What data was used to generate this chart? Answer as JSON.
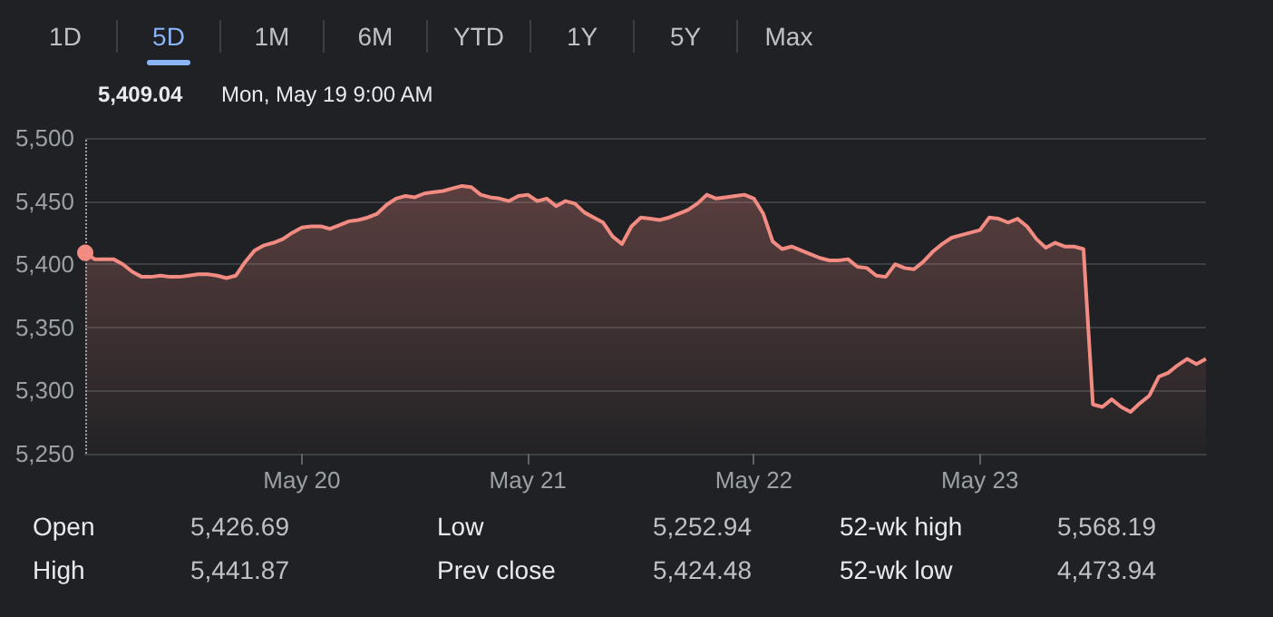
{
  "chart_data": [
    {
      "type": "other",
      "annotations": [
        "1D",
        "5D",
        "1M",
        "6M",
        "YTD",
        "1Y",
        "5Y",
        "Max"
      ]
    },
    {
      "type": "area",
      "color": "#f28b82",
      "line_style": "solid",
      "grid": "y",
      "categories": [
        null,
        null,
        null,
        null,
        null,
        null,
        null,
        null,
        null,
        null,
        null,
        null,
        null,
        null,
        null,
        null,
        null,
        null,
        null,
        null,
        null,
        null,
        null,
        "May 20",
        null,
        null,
        null,
        null,
        null,
        null,
        null,
        null,
        null,
        null,
        null,
        null,
        null,
        null,
        null,
        null,
        null,
        null,
        null,
        null,
        null,
        null,
        null,
        "May 21",
        null,
        null,
        null,
        null,
        null,
        null,
        null,
        null,
        null,
        null,
        null,
        null,
        null,
        null,
        null,
        null,
        null,
        null,
        null,
        null,
        null,
        null,
        null,
        "May 22",
        null,
        null,
        null,
        null,
        null,
        null,
        null,
        null,
        null,
        null,
        null,
        null,
        null,
        null,
        null,
        null,
        null,
        null,
        null,
        null,
        null,
        null,
        null,
        "May 23",
        null,
        null,
        null,
        null,
        null,
        null,
        null,
        null,
        null,
        null,
        null,
        null,
        null,
        null,
        null,
        null,
        null,
        null,
        null,
        null,
        null,
        null,
        null,
        null
      ],
      "values": [
        5409.04,
        5404,
        5404,
        5404,
        5400,
        5394,
        5390,
        5390,
        5391,
        5390,
        5390,
        5391,
        5392,
        5392,
        5391,
        5389,
        5391,
        5402,
        5411,
        5415,
        5417,
        5420,
        5425,
        5429,
        5430,
        5430,
        5428,
        5431,
        5434,
        5435,
        5437,
        5440,
        5447,
        5452,
        5454,
        5453,
        5456,
        5457,
        5458,
        5460,
        5462,
        5461,
        5455,
        5453,
        5452,
        5450,
        5454,
        5455,
        5450,
        5452,
        5446,
        5450,
        5448,
        5441,
        5437,
        5433,
        5422,
        5416,
        5430,
        5437,
        5436,
        5435,
        5437,
        5440,
        5443,
        5448,
        5455,
        5452,
        5453,
        5454,
        5455,
        5452,
        5440,
        5418,
        5412,
        5414,
        5411,
        5408,
        5405,
        5403,
        5403,
        5404,
        5398,
        5397,
        5391,
        5390,
        5400,
        5397,
        5396,
        5402,
        5410,
        5416,
        5421,
        5423,
        5425,
        5427,
        5437,
        5436,
        5433,
        5436,
        5430,
        5420,
        5413,
        5417,
        5414,
        5414,
        5412,
        5289,
        5287,
        5293,
        5287,
        5283,
        5290,
        5296,
        5311,
        5314,
        5320,
        5325,
        5321,
        5325
      ],
      "ylim": [
        5250,
        5500
      ],
      "yticks": [
        {
          "value": 5250,
          "label": "5,250"
        },
        {
          "value": 5300,
          "label": "5,300"
        },
        {
          "value": 5350,
          "label": "5,350"
        },
        {
          "value": 5400,
          "label": "5,400"
        },
        {
          "value": 5450,
          "label": "5,450"
        },
        {
          "value": 5500,
          "label": "5,500"
        }
      ],
      "annotations": [
        "5,409.04",
        "Mon, May 19 9:00 AM"
      ]
    },
    {
      "type": "other",
      "annotations": [
        "Open",
        "5,426.69",
        "Low",
        "5,252.94",
        "52-wk high",
        "5,568.19",
        "High",
        "5,441.87",
        "Prev close",
        "5,424.48",
        "52-wk low",
        "4,473.94"
      ]
    }
  ]
}
